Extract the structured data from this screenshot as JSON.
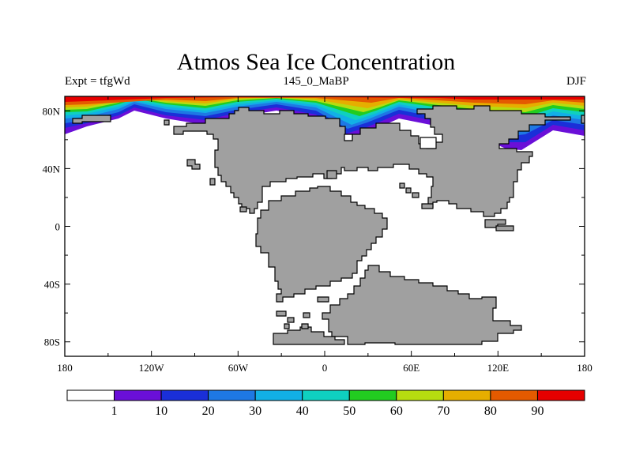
{
  "title": "Atmos Sea Ice Concentration",
  "subtitle_left": "Expt = tfgWd",
  "subtitle_center": "145_0_MaBP",
  "subtitle_right": "DJF",
  "chart_data": {
    "type": "heatmap",
    "title": "Atmos Sea Ice Concentration",
    "projection": "cylindrical equidistant",
    "xlim": [
      -180,
      180
    ],
    "ylim": [
      -90,
      90
    ],
    "x_ticks": [
      "180",
      "120W",
      "60W",
      "0",
      "60E",
      "120E",
      "180"
    ],
    "y_ticks": [
      "80N",
      "40N",
      "0",
      "40S",
      "80S"
    ],
    "colorbar": {
      "levels": [
        "1",
        "10",
        "20",
        "30",
        "40",
        "50",
        "60",
        "70",
        "80",
        "90"
      ],
      "colors": [
        "#ffffff",
        "#6a0fd8",
        "#1a2fd8",
        "#1e78e4",
        "#12b0e6",
        "#0fd0c0",
        "#22cc20",
        "#b6dc10",
        "#e6ae00",
        "#e45a00",
        "#e60000"
      ]
    },
    "land_color": "#a0a0a0",
    "ocean_color": "#ffffff"
  }
}
